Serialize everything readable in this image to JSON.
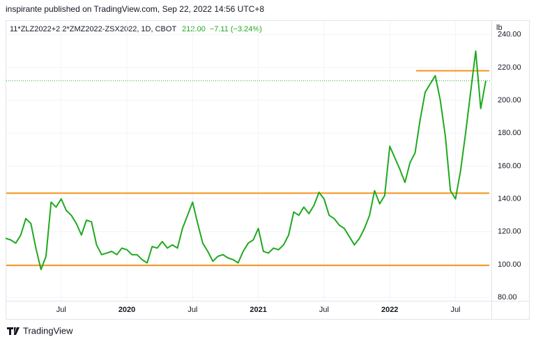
{
  "header": {
    "byline": "inspirante published on TradingView.com, Sep 22, 2022 14:56 UTC+8"
  },
  "legend": {
    "symbol": "11*ZLZ2022+2.2*ZMZ2022-ZSX2022, 1D, CBOT",
    "last": "212.00",
    "change": "−7.11 (−3.24%)"
  },
  "unit": "lb",
  "footer": {
    "brand": "TradingView"
  },
  "chart_data": {
    "type": "line",
    "categories": [
      null,
      null,
      null,
      null,
      null,
      null,
      null,
      null,
      null,
      null,
      null,
      "Jul",
      null,
      null,
      null,
      null,
      null,
      null,
      null,
      null,
      null,
      null,
      null,
      null,
      "2020",
      null,
      null,
      null,
      null,
      null,
      null,
      null,
      null,
      null,
      null,
      null,
      null,
      "Jul",
      null,
      null,
      null,
      null,
      null,
      null,
      null,
      null,
      null,
      null,
      null,
      null,
      "2021",
      null,
      null,
      null,
      null,
      null,
      null,
      null,
      null,
      null,
      null,
      null,
      null,
      "Jul",
      null,
      null,
      null,
      null,
      null,
      null,
      null,
      null,
      null,
      null,
      null,
      null,
      "2022",
      null,
      null,
      null,
      null,
      null,
      null,
      null,
      null,
      null,
      null,
      null,
      null,
      "Jul",
      null,
      null,
      null,
      null,
      null,
      null
    ],
    "series": [
      {
        "color": "#1ea91e",
        "values": [
          116,
          115,
          113,
          118,
          128,
          125,
          110,
          97,
          105,
          138,
          135,
          140,
          133,
          130,
          125,
          118,
          127,
          126,
          112,
          106,
          107,
          108,
          106,
          110,
          109,
          106,
          106,
          103,
          101,
          111,
          110,
          114,
          110,
          112,
          110,
          122,
          130,
          138,
          125,
          113,
          108,
          102,
          105,
          106,
          104,
          103,
          101,
          108,
          113,
          115,
          122,
          108,
          107,
          110,
          109,
          112,
          118,
          132,
          130,
          135,
          131,
          136,
          144,
          140,
          130,
          128,
          124,
          122,
          117,
          112,
          116,
          122,
          130,
          145,
          137,
          142,
          172,
          165,
          158,
          150,
          162,
          168,
          188,
          205,
          210,
          215,
          200,
          178,
          145,
          140,
          157,
          180,
          205,
          230,
          195,
          212
        ]
      }
    ],
    "ylim": [
      77.9,
      248.4
    ],
    "yticks": [
      {
        "value": 80,
        "label": "80.00"
      },
      {
        "value": 100,
        "label": "100.00"
      },
      {
        "value": 120,
        "label": "120.00"
      },
      {
        "value": 140,
        "label": "140.00"
      },
      {
        "value": 160,
        "label": "160.00"
      },
      {
        "value": 180,
        "label": "180.00"
      },
      {
        "value": 200,
        "label": "200.00"
      },
      {
        "value": 220,
        "label": "220.00"
      },
      {
        "value": 240,
        "label": "240.00"
      }
    ],
    "hlines": [
      218,
      143.5,
      99.5
    ],
    "hline_color": "#f7931a",
    "grid": true
  }
}
